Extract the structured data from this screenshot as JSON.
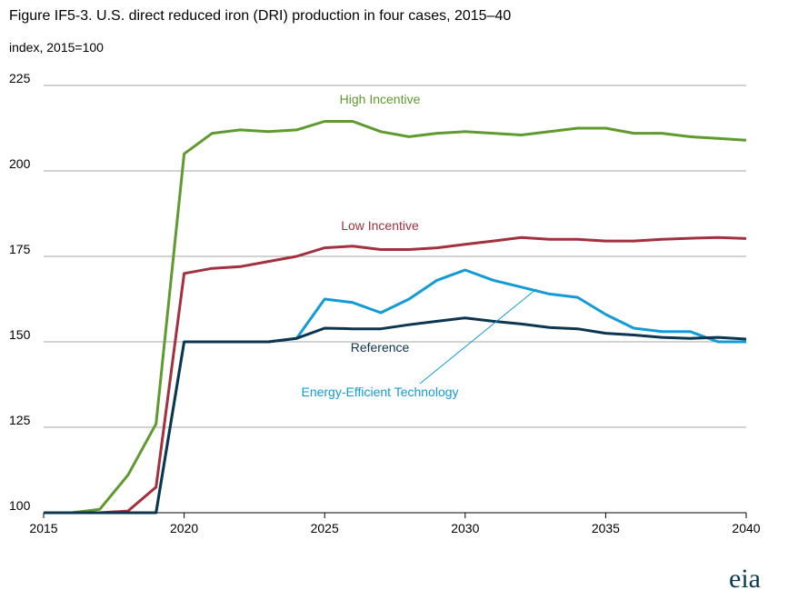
{
  "header": {
    "title": "Figure IF5-3. U.S. direct reduced iron (DRI) production in four cases, 2015–40",
    "subtitle": "index, 2015=100"
  },
  "logo": {
    "text": "eia"
  },
  "chart_data": {
    "type": "line",
    "title": "Figure IF5-3. U.S. direct reduced iron (DRI) production in four cases, 2015–40",
    "ylabel": "index, 2015=100",
    "xlim": [
      2015,
      2040
    ],
    "ylim": [
      100,
      225
    ],
    "xticks": [
      2015,
      2020,
      2025,
      2030,
      2035,
      2040
    ],
    "yticks": [
      100,
      125,
      150,
      175,
      200,
      225
    ],
    "grid": "horizontal",
    "x": [
      2015,
      2016,
      2017,
      2018,
      2019,
      2020,
      2021,
      2022,
      2023,
      2024,
      2025,
      2026,
      2027,
      2028,
      2029,
      2030,
      2031,
      2032,
      2033,
      2034,
      2035,
      2036,
      2037,
      2038,
      2039,
      2040
    ],
    "series": [
      {
        "name": "High Incentive",
        "color": "#5f9a2e",
        "values": [
          100,
          100,
          101,
          111,
          126,
          205,
          211,
          212,
          211.5,
          212,
          214.5,
          214.5,
          211.5,
          210,
          211,
          211.5,
          211,
          210.5,
          211.5,
          212.5,
          212.5,
          211,
          211,
          210,
          209.5,
          209
        ]
      },
      {
        "name": "Low Incentive",
        "color": "#a2303f",
        "values": [
          100,
          100,
          100,
          100.5,
          107.5,
          170,
          171.5,
          172,
          173.5,
          175,
          177.5,
          178,
          177,
          177,
          177.5,
          178.5,
          179.5,
          180.5,
          180,
          180,
          179.5,
          179.5,
          180,
          180.3,
          180.5,
          180.2
        ]
      },
      {
        "name": "Energy-Efficient Technology",
        "color": "#139bd6",
        "values": [
          100,
          100,
          100,
          100,
          100,
          150,
          150,
          150,
          150,
          151,
          162.5,
          161.5,
          158.5,
          162.5,
          168,
          171,
          168,
          166,
          164,
          163,
          158,
          154,
          153,
          153,
          150,
          150
        ]
      },
      {
        "name": "Reference",
        "color": "#0c3550",
        "values": [
          100,
          100,
          100,
          100,
          100,
          150,
          150,
          150,
          150,
          151,
          154,
          153.8,
          153.8,
          155,
          156,
          157,
          156,
          155.2,
          154.2,
          153.8,
          152.5,
          152,
          151.3,
          151,
          151.3,
          150.8
        ]
      }
    ],
    "annotations": [
      {
        "text": "High Incentive",
        "series": "High Incentive"
      },
      {
        "text": "Low Incentive",
        "series": "Low Incentive"
      },
      {
        "text": "Reference",
        "series": "Reference"
      },
      {
        "text": "Energy-Efficient Technology",
        "series": "Energy-Efficient Technology"
      }
    ]
  }
}
